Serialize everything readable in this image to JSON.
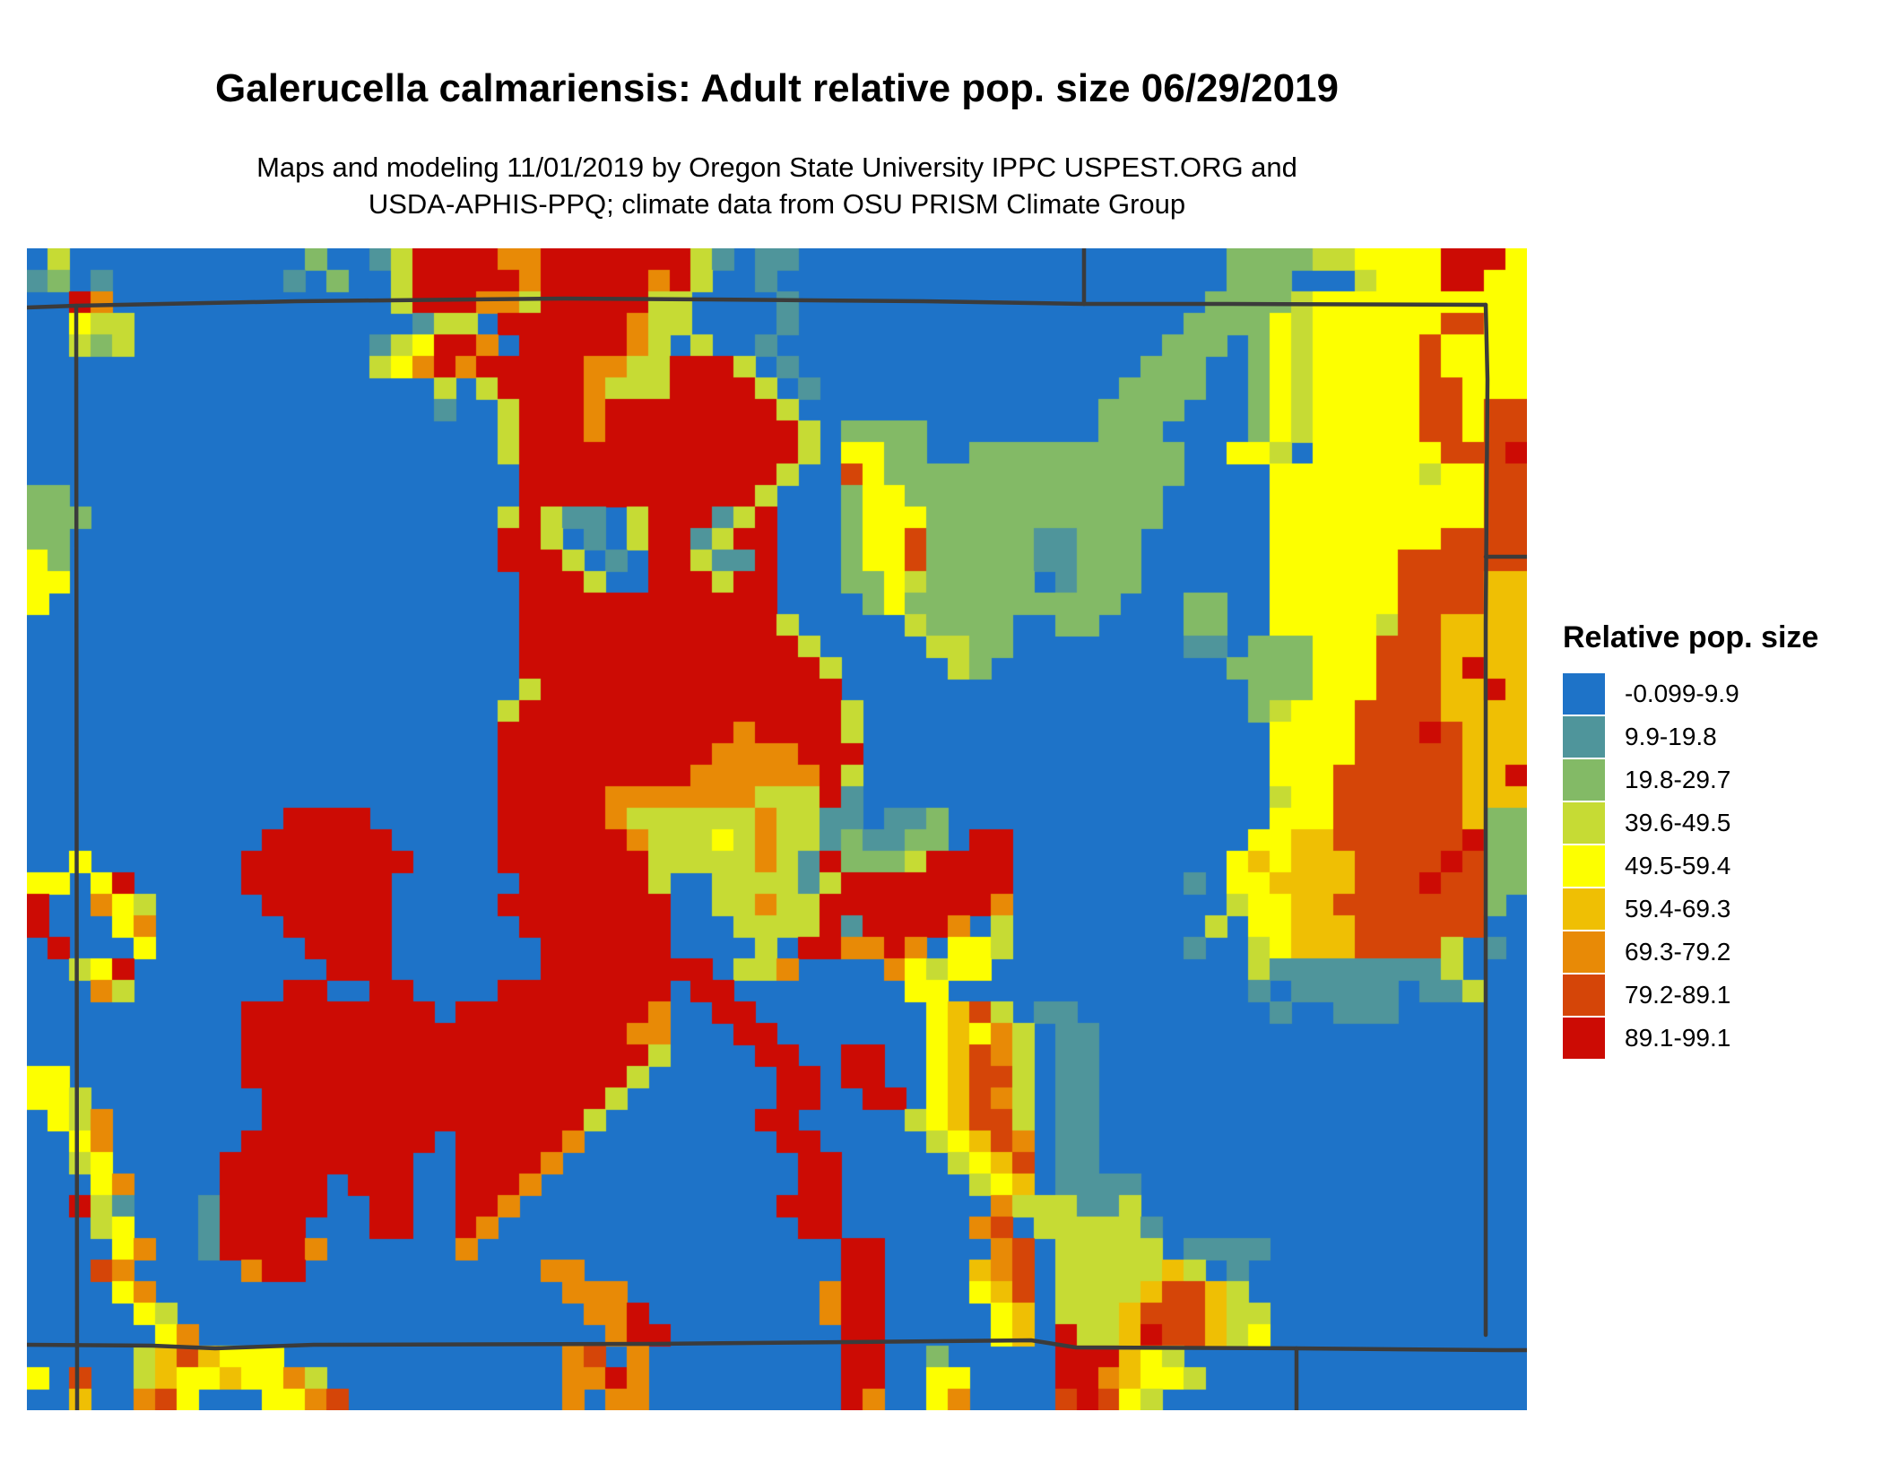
{
  "header": {
    "title": "Galerucella calmariensis: Adult relative pop. size 06/29/2019",
    "subtitle_line1": "Maps and modeling 11/01/2019 by Oregon State University IPPC USPEST.ORG and",
    "subtitle_line2": "USDA-APHIS-PPQ; climate data from OSU PRISM Climate Group"
  },
  "legend": {
    "title": "Relative pop. size",
    "entries": [
      {
        "label": "-0.099-9.9",
        "color": "#1E73C8"
      },
      {
        "label": "9.9-19.8",
        "color": "#4F959B"
      },
      {
        "label": "19.8-29.7",
        "color": "#83BA66"
      },
      {
        "label": "39.6-49.5",
        "color": "#C6DB34"
      },
      {
        "label": "49.5-59.4",
        "color": "#FDFF00"
      },
      {
        "label": "59.4-69.3",
        "color": "#EFBF04"
      },
      {
        "label": "69.3-79.2",
        "color": "#E88A06"
      },
      {
        "label": "79.2-89.1",
        "color": "#D54508"
      },
      {
        "label": "89.1-99.1",
        "color": "#CC0B04"
      }
    ]
  },
  "map": {
    "border_color": "#3B3B3B",
    "grid_cols": 70,
    "grid_rows": 54,
    "palette": {
      ".": "#1E73C8",
      "t": "#4F959B",
      "g": "#83BA66",
      "l": "#C6DB34",
      "y": "#FDFF00",
      "d": "#EFBF04",
      "o": "#E88A06",
      "r": "#D54508",
      "R": "#CC0B04"
    },
    "grid": [
      [
        ".l........",
        "...g..tlRR",
        "RRooRRRRRR",
        "Rlt.tt....",
        "..........",
        "......gggg",
        "llyyyyRRRy"
      ],
      [
        "tg.t......",
        "..t.g..lRR",
        "RRRoRRRRRo",
        "Rl..t.....",
        "..........",
        "......ggg.",
        "..lyyyRRyy"
      ],
      [
        "..Ro......",
        ".......lRR",
        "RoolRRRRRl",
        "l....t....",
        "..........",
        ".....ggggl",
        "yyyyyyyyyy"
      ],
      [
        "..yll.....",
        "........tl",
        "l.RRRRRRol",
        "l....t....",
        "..........",
        "....ggggyl",
        "yyyyyyrryy"
      ],
      [
        "..lgl.....",
        "......tlyR",
        "Ro.RRRRRol",
        ".l..t.....",
        "..........",
        "...ggg.gyl",
        "yyyyyryyyy"
      ],
      [
        "..........",
        "......lyoR",
        "oRRRRRooll",
        "RRRl.t....",
        "..........",
        "..ggg..gyl",
        "yyyyyryyyy"
      ],
      [
        "..........",
        ".........l",
        ".lRRRRolll",
        "RRRRl.t...",
        "..........",
        ".gggg..gyl",
        "yyyyyrryyy"
      ],
      [
        "..........",
        ".........t",
        "..lRRRoRRR",
        "RRRRRl....",
        "..........",
        "gggg...gyl",
        "yyyyyrryrr"
      ],
      [
        "..........",
        "..........",
        "..lRRRoRRR",
        "RRRRRRl.gg",
        "gg........",
        "ggg....gyl",
        "yyyyyrryrr"
      ],
      [
        "..........",
        "..........",
        "..lRRRRRRR",
        "RRRRRRl.yy",
        "gg..gggggg",
        "gggg..yyl.",
        "yyyyyyrrrR"
      ],
      [
        "..........",
        "..........",
        "...RRRRRRR",
        "RRRRRl..ry",
        "gggggggggg",
        "gggg....yy",
        "yyyyylyyrr"
      ],
      [
        "gg........",
        "..........",
        "...RRRRRRR",
        "RRRRl...gy",
        "yggggggggg",
        "ggg.....yy",
        "yyyyyyyyrr"
      ],
      [
        "ggg.......",
        "..........",
        "..lRltt.lR",
        "RRtlR...gy",
        "yygggggggg",
        "ggg.....yy",
        "yyyyyyyyrr"
      ],
      [
        "gg........",
        "..........",
        "..RRl.t.lR",
        "RtlRR...gy",
        "yrgggggttg",
        "gg......yy",
        "yyyyyyrrrr"
      ],
      [
        "yg........",
        "..........",
        "..RRRl.t.R",
        "RlttR...gy",
        "yrgggggttg",
        "gg......yy",
        "yyyyrrrrrr"
      ],
      [
        "yy........",
        "..........",
        "...RRRl..R",
        "RRlRR...gg",
        "ylggggg.tg",
        "gg......yy",
        "yyyyrrrrdd"
      ],
      [
        "y.........",
        "..........",
        "...RRRRRRR",
        "RRRRR....g",
        "yggggggggg",
        "g...gg..yy",
        "yyyyrrrrdd"
      ],
      [
        "..........",
        "..........",
        "...RRRRRRR",
        "RRRRRl....",
        ".lgggg..gg",
        "....gg..yy",
        "yyylrrdddd"
      ],
      [
        "..........",
        "..........",
        "...RRRRRRR",
        "RRRRRRl...",
        "..llgg....",
        "....tt.ggg",
        "yyyrrrdddd"
      ],
      [
        "..........",
        "..........",
        "...RRRRRRR",
        "RRRRRRRl..",
        "...lg.....",
        "......gggg",
        "yyyrrrdRdd"
      ],
      [
        "..........",
        "..........",
        "...lRRRRRR",
        "RRRRRRRR..",
        "..........",
        ".......ggg",
        "yyyrrrddRd"
      ],
      [
        "..........",
        "..........",
        "..lRRRRRRR",
        "RRRRRRRRl.",
        "..........",
        ".......gly",
        "yyrrrrdddd"
      ],
      [
        "..........",
        "..........",
        "..RRRRRRRR",
        "RRRoRRRRl.",
        "..........",
        "........yy",
        "yyrrrRrddd"
      ],
      [
        "..........",
        "..........",
        "..RRRRRRRR",
        "RRooooRRR.",
        "..........",
        "........yy",
        "yyrrrrrddd"
      ],
      [
        "..........",
        "..........",
        "..RRRRRRRR",
        "RooooooRl.",
        "..........",
        "........yy",
        "yrrrrrrddR"
      ],
      [
        "..........",
        "..........",
        "..RRRRRooo",
        "oooolllRt.",
        "..........",
        "........ly",
        "yrrrrrrddd"
      ],
      [
        "..........",
        "..RRRR....",
        "..RRRRRoll",
        "llllolltt.",
        "ttg.......",
        "........yy",
        "yrrrrrrdgg"
      ],
      [
        "..........",
        ".RRRRRR...",
        "..RRRRRRol",
        "llylolltgt",
        "tgg.RR....",
        ".......yyd",
        "drrrrrrRgg"
      ],
      [
        "..y.......",
        "RRRRRRRR..",
        "..RRRRRRRl",
        "lllloltRgg",
        "glRRRR....",
        "......ydyd",
        "ddrrrrRrgg"
      ],
      [
        "yy.yR.....",
        "RRRRRRR...",
        "...RRRRRRl",
        "..lllltlRR",
        "RRRRRR....",
        "....t.yydd",
        "ddrrrRrrgg"
      ],
      [
        "R..oyl....",
        ".RRRRRR...",
        "..RRRRRRRR",
        "..llollRRR",
        "RRRRRo....",
        "......lyyd",
        "drrrrrrrg."
      ],
      [
        "R...yo....",
        "..RRRRR...",
        "...RRRRRRR",
        "...llllRtR",
        "RRRo.l....",
        ".....l.yyd",
        "ddrrrrrr.."
      ],
      [
        ".R...y....",
        "...RRRR...",
        "....RRRRRR",
        "....l.RRoo",
        "Ro.yyl....",
        "....t..lyd",
        "ddrrrrl.t."
      ],
      [
        "..lyR.....",
        "....RRR...",
        "....RRRRRR",
        "RR.llo....",
        "oylyy.....",
        ".......ltt",
        "ttttttl..."
      ],
      [
        "...ol.....",
        "..RR..RR..",
        "..RRRRRRRR",
        ".RR.......",
        ".yy.......",
        ".......t.t",
        "tttt.ttl.."
      ],
      [
        "..........",
        "RRRRRRRRR.",
        "RRRRRRRRRo",
        "..RR......",
        "..ydrl.tt.",
        "........t.",
        ".ttt......"
      ],
      [
        "..........",
        "RRRRRRRRRR",
        "RRRRRRRRoo",
        "...RR.....",
        "..ydyol.tt",
        "..........",
        ".........."
      ],
      [
        "..........",
        "RRRRRRRRRR",
        "RRRRRRRRRl",
        "....RR..RR",
        "..ydrol.tt",
        "..........",
        ".........."
      ],
      [
        "yy........",
        "RRRRRRRRRR",
        "RRRRRRRRl.",
        ".....RR.RR",
        "..ydrrl.tt",
        "..........",
        ".........."
      ],
      [
        "yyl.......",
        ".RRRRRRRRR",
        "RRRRRRRl..",
        ".....RR..R",
        "R.ydrol.tt",
        "..........",
        ".........."
      ],
      [
        ".ylo......",
        ".RRRRRRRRR",
        "RRRRRRl...",
        "....RR....",
        ".lydrrl.tt",
        "..........",
        ".........."
      ],
      [
        "..yo......",
        "RRRRRRRRR.",
        "RRRRRo....",
        ".....RR...",
        "..lydro.tt",
        "..........",
        ".........."
      ],
      [
        "..ly.....R",
        "RRRRRRRR..",
        "RRRRo.....",
        "......RR..",
        "...lydr.tt",
        "..........",
        ".........."
      ],
      [
        "...yo....R",
        "RRRR.RRR..",
        "RRRo......",
        "......RR..",
        "....lyd.tt",
        "tt........",
        ".........."
      ],
      [
        "..Rlt...tR",
        "RRRR..RR..",
        "RRo.......",
        ".....RRR..",
        ".....olllt",
        "tl........",
        ".........."
      ],
      [
        "...ly...tR",
        "RRR...RR..",
        "Ro........",
        "......RR..",
        "....or.lll",
        "llt.......",
        ".........."
      ],
      [
        "....yo..tR",
        "RRRo......",
        "o.........",
        "........RR",
        ".....or.ll",
        "lll.tttt..",
        ".........."
      ],
      [
        "...ro.....",
        "oRR.......",
        "....oo....",
        "........RR",
        "....dor.ll",
        "llldl.t...",
        ".........."
      ],
      [
        "....yo....",
        "..........",
        ".....ooo..",
        ".......oRR",
        "....ydr.ll",
        "lldrrdl...",
        ".........."
      ],
      [
        ".....yl...",
        "..........",
        "......ooR.",
        ".......oRR",
        ".....yd.ll",
        "ldrrrdll..",
        ".........."
      ],
      [
        "......yo..",
        "..........",
        ".......oRR",
        "........RR",
        ".....yd.Rl",
        "ldRrrdly..",
        ".........."
      ],
      [
        ".....ldrdy",
        "yy........",
        ".....or.o.",
        "........RR",
        "..g.....RR",
        "Rdyl......",
        ".........."
      ],
      [
        "y.r..ldyyd",
        "yyol......",
        ".....ooRo.",
        "........RR",
        "..yy....RR",
        "odyyl.....",
        ".........."
      ],
      [
        "..d..ory..",
        ".yyor.....",
        ".....o.oo.",
        "........Ro",
        "..yo....rR",
        "ryl.......",
        ".........."
      ]
    ]
  }
}
